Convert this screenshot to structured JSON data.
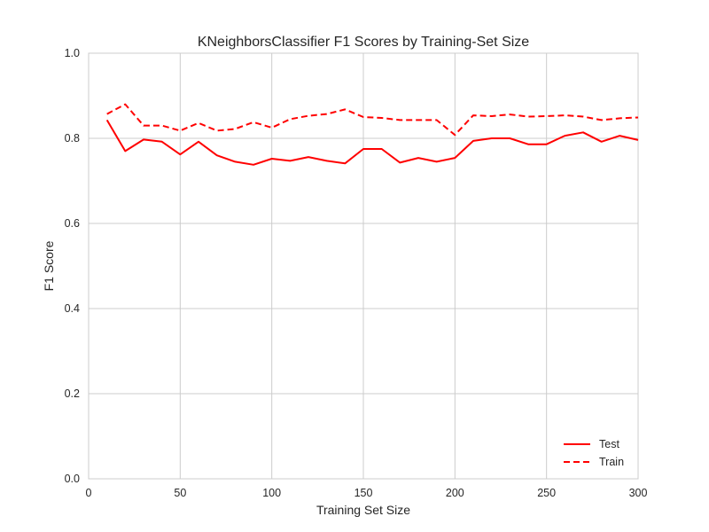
{
  "chart_data": {
    "type": "line",
    "title": "KNeighborsClassifier F1 Scores by Training-Set Size",
    "xlabel": "Training Set Size",
    "ylabel": "F1 Score",
    "xlim": [
      0,
      300
    ],
    "ylim": [
      0.0,
      1.0
    ],
    "xticks": [
      0,
      50,
      100,
      150,
      200,
      250,
      300
    ],
    "yticks": [
      0.0,
      0.2,
      0.4,
      0.6,
      0.8,
      1.0
    ],
    "xtick_labels": [
      "0",
      "50",
      "100",
      "150",
      "200",
      "250",
      "300"
    ],
    "ytick_labels": [
      "0.0",
      "0.2",
      "0.4",
      "0.6",
      "0.8",
      "1.0"
    ],
    "grid": true,
    "legend_position": "lower-right",
    "x": [
      10,
      20,
      30,
      40,
      50,
      60,
      70,
      80,
      90,
      100,
      110,
      120,
      130,
      140,
      150,
      160,
      170,
      180,
      190,
      200,
      210,
      220,
      230,
      240,
      250,
      260,
      270,
      280,
      290,
      300
    ],
    "series": [
      {
        "name": "Test",
        "color": "#ff0000",
        "style": "solid",
        "values": [
          0.843,
          0.77,
          0.797,
          0.792,
          0.762,
          0.792,
          0.76,
          0.745,
          0.738,
          0.752,
          0.747,
          0.756,
          0.747,
          0.741,
          0.775,
          0.775,
          0.743,
          0.754,
          0.745,
          0.754,
          0.794,
          0.8,
          0.8,
          0.786,
          0.786,
          0.806,
          0.814,
          0.792,
          0.806,
          0.796
        ]
      },
      {
        "name": "Train",
        "color": "#ff0000",
        "style": "dashed",
        "values": [
          0.857,
          0.88,
          0.83,
          0.83,
          0.818,
          0.836,
          0.818,
          0.822,
          0.838,
          0.825,
          0.845,
          0.853,
          0.857,
          0.868,
          0.85,
          0.848,
          0.843,
          0.843,
          0.843,
          0.808,
          0.854,
          0.852,
          0.856,
          0.851,
          0.852,
          0.854,
          0.851,
          0.843,
          0.847,
          0.849
        ]
      }
    ]
  }
}
